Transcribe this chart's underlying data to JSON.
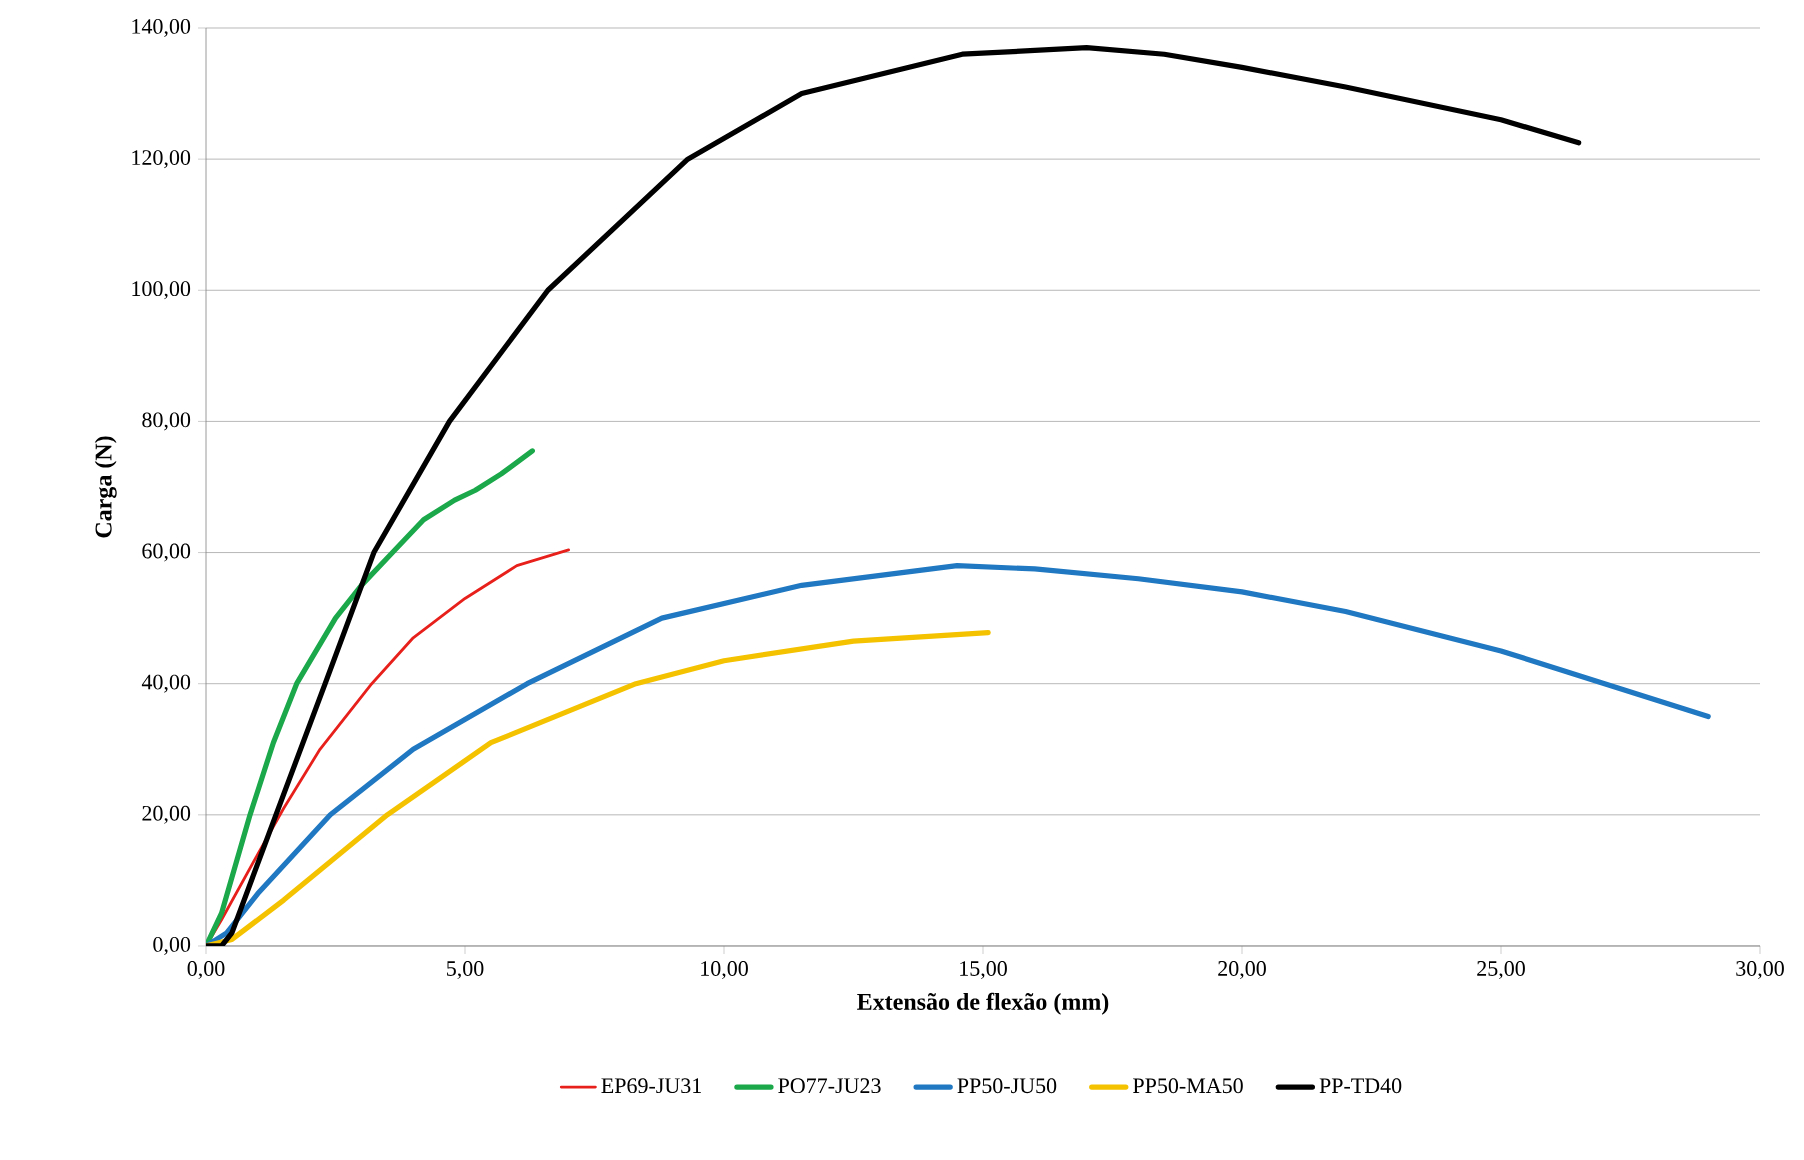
{
  "chart_data": {
    "type": "line",
    "xlabel": "Extensão de flexão (mm)",
    "ylabel": "Carga (N)",
    "xlim": [
      0,
      30
    ],
    "ylim": [
      0,
      140
    ],
    "xticks": [
      {
        "value": 0,
        "label": "0,00"
      },
      {
        "value": 5,
        "label": "5,00"
      },
      {
        "value": 10,
        "label": "10,00"
      },
      {
        "value": 15,
        "label": "15,00"
      },
      {
        "value": 20,
        "label": "20,00"
      },
      {
        "value": 25,
        "label": "25,00"
      },
      {
        "value": 30,
        "label": "30,00"
      }
    ],
    "yticks": [
      {
        "value": 0,
        "label": "0,00"
      },
      {
        "value": 20,
        "label": "20,00"
      },
      {
        "value": 40,
        "label": "40,00"
      },
      {
        "value": 60,
        "label": "60,00"
      },
      {
        "value": 80,
        "label": "80,00"
      },
      {
        "value": 100,
        "label": "100,00"
      },
      {
        "value": 120,
        "label": "120,00"
      },
      {
        "value": 140,
        "label": "140,00"
      }
    ],
    "grid": "y",
    "legend": "bottom",
    "marker": "none",
    "line_style": "solid",
    "series": [
      {
        "name": "EP69-JU31",
        "color": "#e8201c",
        "x": [
          0,
          0.3,
          1.0,
          1.5,
          2.2,
          3.2,
          4.0,
          5.0,
          6.0,
          7.0
        ],
        "values": [
          0,
          4,
          14,
          21,
          30,
          40,
          47,
          53,
          58,
          60.4
        ]
      },
      {
        "name": "PO77-JU23",
        "color": "#1aa84b",
        "x": [
          0,
          0.3,
          0.85,
          1.3,
          1.75,
          2.5,
          3.0,
          3.6,
          4.2,
          4.8,
          5.2,
          5.7,
          6.3
        ],
        "values": [
          0,
          5,
          20,
          31,
          40,
          50,
          55,
          60,
          65,
          68,
          69.5,
          72,
          75.5
        ]
      },
      {
        "name": "PP50-JU50",
        "color": "#1f78c1",
        "x": [
          0,
          0.4,
          1.0,
          2.4,
          4.0,
          6.2,
          8.8,
          11.5,
          14.5,
          16.0,
          18.0,
          20.0,
          22.0,
          25.0,
          27.0,
          29.0
        ],
        "values": [
          0,
          2,
          8,
          20,
          30,
          40,
          50,
          55,
          58,
          57.5,
          56,
          54,
          51,
          45,
          40,
          35
        ]
      },
      {
        "name": "PP50-MA50",
        "color": "#f5c200",
        "x": [
          0,
          0.5,
          1.5,
          3.5,
          5.5,
          8.3,
          10.0,
          12.5,
          15.1
        ],
        "values": [
          0,
          1,
          7,
          20,
          31,
          40,
          43.5,
          46.5,
          47.8
        ]
      },
      {
        "name": "PP-TD40",
        "color": "#000000",
        "x": [
          0,
          0.3,
          0.5,
          1.35,
          2.3,
          3.24,
          4.7,
          6.6,
          9.3,
          11.5,
          14.6,
          17.0,
          18.5,
          20.0,
          22.0,
          25.0,
          26.5
        ],
        "values": [
          0,
          0,
          2,
          20,
          40,
          60,
          80,
          100,
          120,
          130,
          136,
          137,
          136,
          134,
          131,
          126,
          122.5
        ]
      }
    ]
  }
}
